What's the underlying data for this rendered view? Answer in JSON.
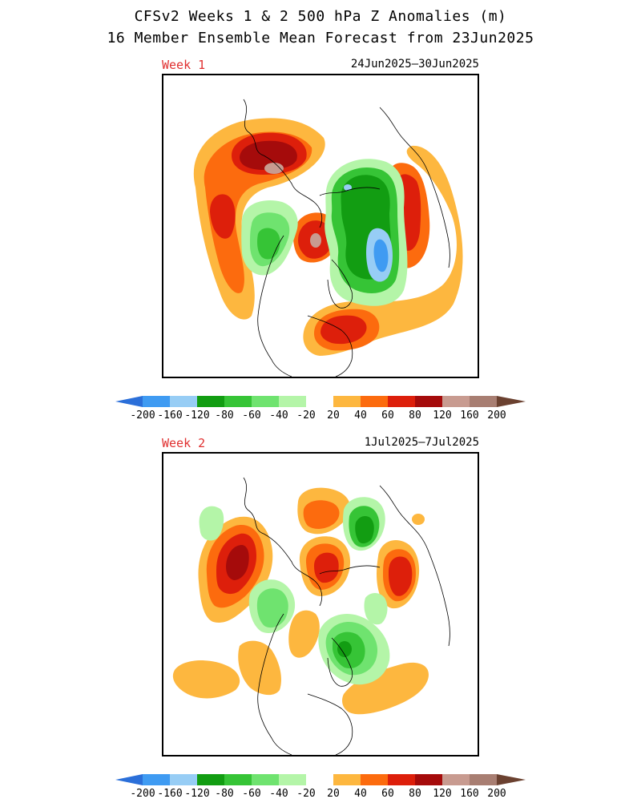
{
  "title_line1": "CFSv2 Weeks 1 & 2 500 hPa Z Anomalies (m)",
  "title_line2": "16 Member Ensemble Mean Forecast from 23Jun2025",
  "colorbar": {
    "colors": [
      "#2b6fd9",
      "#3f9bf2",
      "#97cdf5",
      "#129d12",
      "#36c436",
      "#6fe36f",
      "#b4f5a8",
      "#ffffff",
      "#fdb73f",
      "#fc6b0e",
      "#dd1f0b",
      "#a50b0b",
      "#c89b90",
      "#a87e72",
      "#6b4130"
    ],
    "labels": [
      "-200",
      "-160",
      "-120",
      "-80",
      "-60",
      "-40",
      "-20",
      "20",
      "40",
      "60",
      "80",
      "120",
      "160",
      "200"
    ]
  },
  "panels": [
    {
      "week_label": "Week 1",
      "date_range": "24Jun2025–30Jun2025",
      "features": [
        {
          "level": "+20",
          "color": "#fdb73f"
        },
        {
          "level": "+40",
          "color": "#fc6b0e"
        },
        {
          "level": "+80",
          "color": "#dd1f0b"
        },
        {
          "level": "+120",
          "color": "#a50b0b"
        },
        {
          "level": "+160",
          "color": "#c89b90"
        },
        {
          "level": "-20",
          "color": "#b4f5a8"
        },
        {
          "level": "-60",
          "color": "#36c436"
        },
        {
          "level": "-80",
          "color": "#129d12"
        },
        {
          "level": "-120",
          "color": "#97cdf5"
        },
        {
          "level": "-160",
          "color": "#3f9bf2"
        }
      ]
    },
    {
      "week_label": "Week 2",
      "date_range": "1Jul2025–7Jul2025",
      "features": [
        {
          "level": "+20",
          "color": "#fdb73f"
        },
        {
          "level": "+40",
          "color": "#fc6b0e"
        },
        {
          "level": "+80",
          "color": "#dd1f0b"
        },
        {
          "level": "+120",
          "color": "#a50b0b"
        },
        {
          "level": "-20",
          "color": "#b4f5a8"
        },
        {
          "level": "-60",
          "color": "#36c436"
        },
        {
          "level": "-80",
          "color": "#129d12"
        }
      ]
    }
  ]
}
